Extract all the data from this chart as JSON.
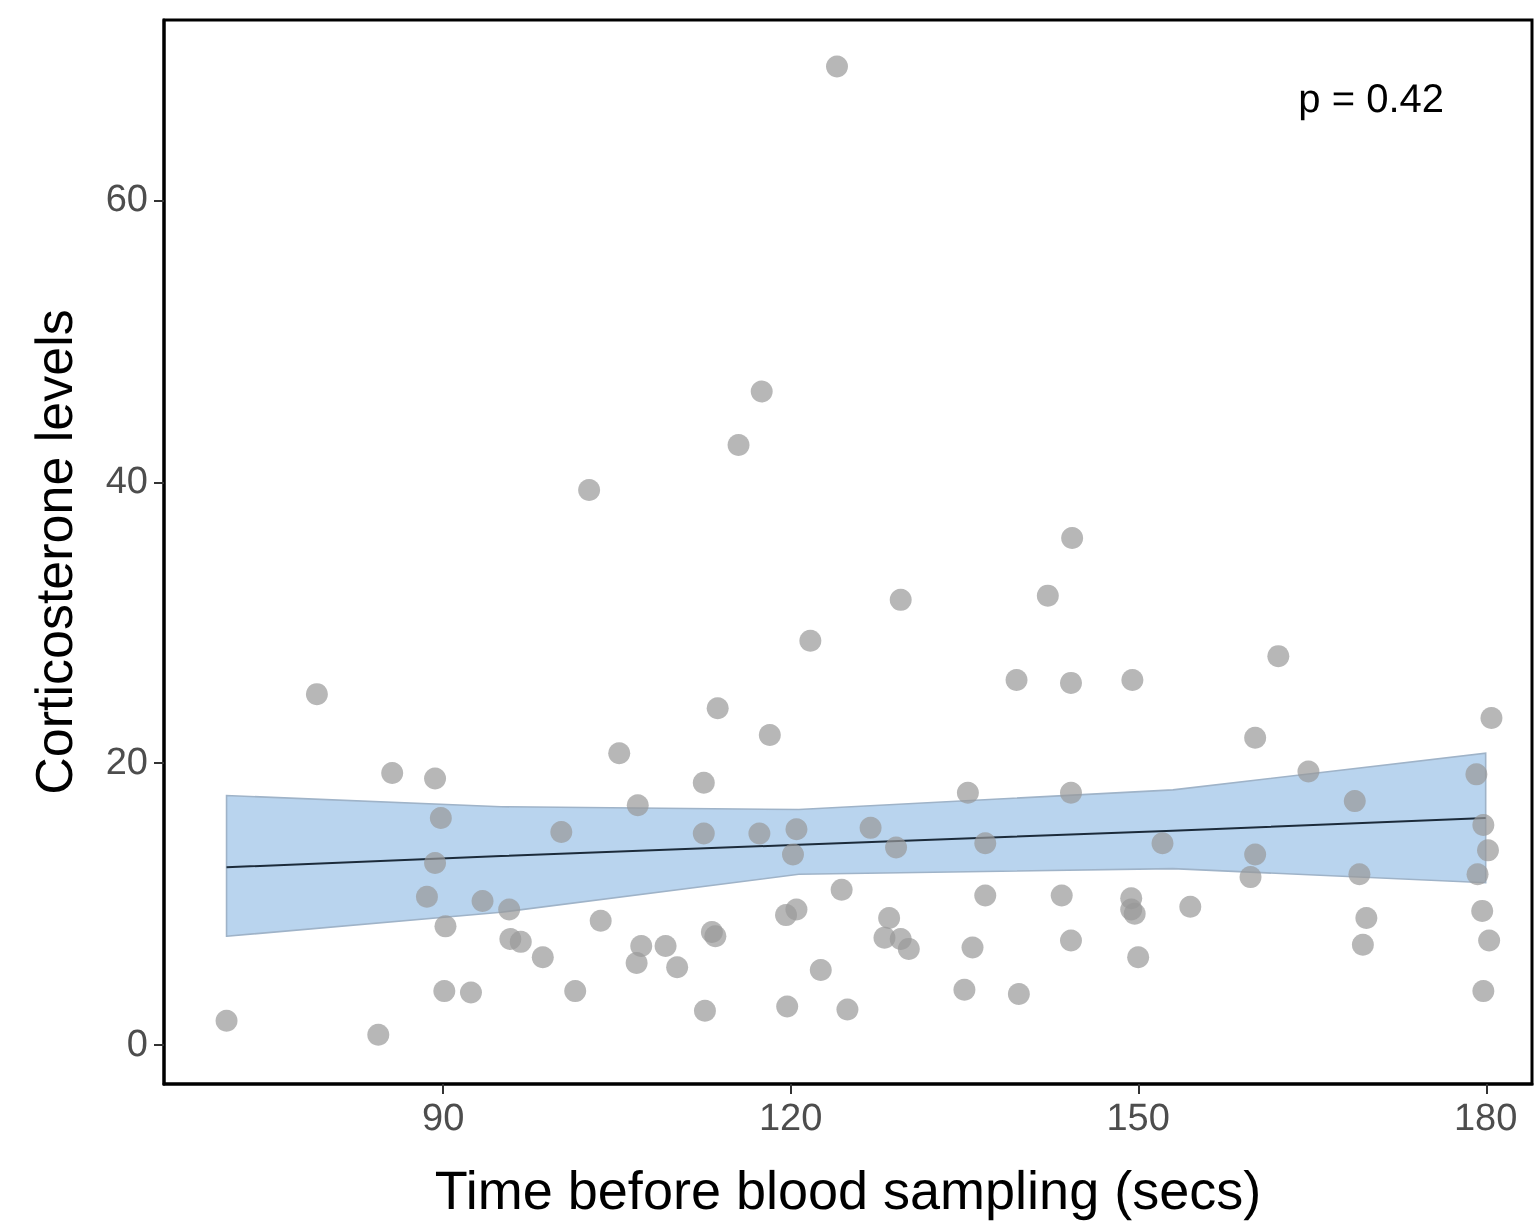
{
  "chart_data": {
    "type": "scatter",
    "xlabel": "Time before blood sampling (secs)",
    "ylabel": "Corticosterone levels",
    "xlim": [
      65.9,
      184
    ],
    "ylim": [
      -2.8,
      72.8
    ],
    "xticks": [
      90,
      120,
      150,
      180
    ],
    "yticks": [
      0,
      20,
      40,
      60
    ],
    "grid": false,
    "marker": "circle",
    "annotations": [
      "p = 0.42"
    ],
    "series": [
      {
        "color": "#999999",
        "x": [
          71.3,
          79.1,
          84.4,
          85.6,
          89.3,
          89.8,
          89.3,
          88.6,
          93.4,
          100.2,
          105.2,
          106.8,
          95.7,
          90.2,
          95.8,
          96.7,
          98.6,
          103.6,
          90.1,
          92.4,
          101.4,
          106.7,
          107.1,
          129.5,
          142.2,
          121.7,
          139.5,
          144.2,
          113.7,
          118.2,
          112.5,
          135.3,
          144.2,
          112.5,
          117.3,
          120.5,
          120.2,
          126.9,
          129.1,
          136.8,
          124.4,
          136.8,
          143.4,
          119.6,
          120.5,
          128.5,
          109.2,
          110.2,
          113.2,
          113.5,
          128.1,
          129.5,
          130.2,
          135.7,
          144.2,
          122.6,
          135.0,
          139.7,
          112.6,
          119.7,
          124.9,
          149.5,
          162.1,
          180.5,
          160.1,
          164.7,
          179.2,
          168.7,
          152.1,
          160.1,
          159.7,
          169.1,
          179.8,
          180.2,
          179.3,
          149.4,
          149.7,
          149.4,
          154.5,
          169.7,
          179.7,
          150.0,
          169.4,
          180.3,
          179.8,
          124.0,
          117.5,
          115.5,
          102.6,
          144.3
        ],
        "values": [
          1.7,
          24.9,
          0.7,
          19.3,
          18.9,
          16.1,
          12.9,
          10.5,
          10.2,
          15.1,
          20.7,
          17.0,
          9.6,
          8.4,
          7.5,
          7.3,
          6.2,
          8.8,
          3.8,
          3.7,
          3.8,
          5.8,
          7.0,
          31.6,
          31.9,
          28.7,
          25.9,
          25.7,
          23.9,
          22.0,
          18.6,
          17.9,
          17.9,
          15.0,
          15.0,
          15.3,
          13.5,
          15.4,
          14.0,
          14.3,
          11.0,
          10.6,
          10.6,
          9.2,
          9.6,
          9.0,
          7.0,
          5.5,
          8.0,
          7.7,
          7.6,
          7.5,
          6.8,
          6.9,
          7.4,
          5.3,
          3.9,
          3.6,
          2.4,
          2.7,
          2.5,
          25.9,
          27.6,
          23.2,
          21.8,
          19.4,
          19.2,
          17.3,
          14.3,
          13.5,
          11.9,
          12.1,
          15.6,
          13.8,
          12.1,
          10.4,
          9.3,
          9.6,
          9.8,
          9.0,
          9.5,
          6.2,
          7.1,
          7.4,
          3.8,
          69.5,
          46.4,
          42.6,
          39.4,
          36.0
        ]
      },
      {
        "type": "line",
        "color": "#1c2b3a",
        "marker": "none",
        "line_style": "solid",
        "x": [
          71.3,
          95,
          120.7,
          153,
          180
        ],
        "values": [
          12.6,
          13.4,
          14.2,
          15.2,
          16.1
        ],
        "lower": [
          7.7,
          9.4,
          12.1,
          12.5,
          11.5
        ],
        "upper": [
          17.7,
          16.9,
          16.7,
          18.1,
          20.7
        ]
      }
    ]
  }
}
